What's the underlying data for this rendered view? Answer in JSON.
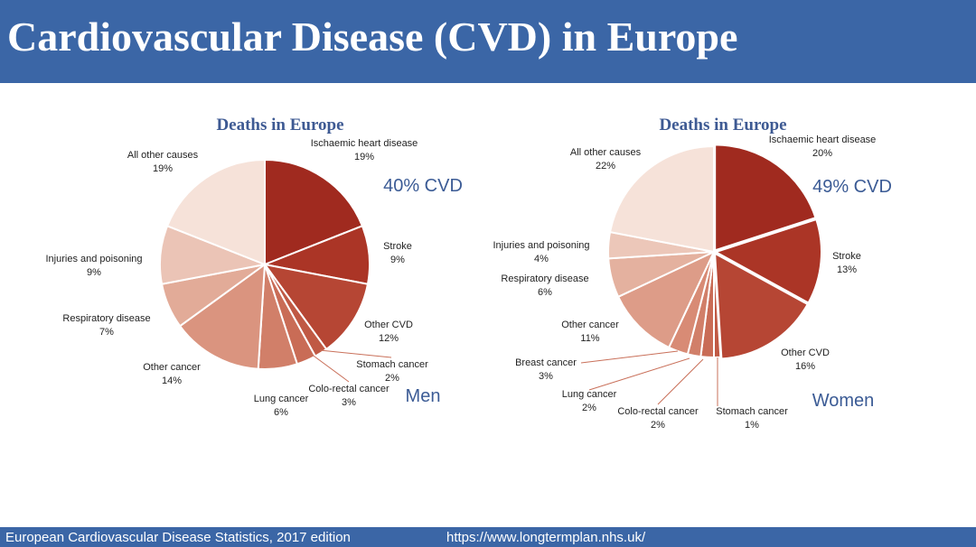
{
  "header": {
    "title": "Cardiovascular Disease (CVD) in Europe"
  },
  "footer": {
    "source": "European Cardiovascular Disease Statistics, 2017 edition",
    "url": "https://www.longtermplan.nhs.uk/"
  },
  "chart_data": [
    {
      "type": "pie",
      "title": "Deaths in Europe",
      "group_label": "Men",
      "cvd_callout": "40% CVD",
      "slices": [
        {
          "name": "Ischaemic heart disease",
          "value": 19,
          "label": "19%",
          "color": "#a02a1f"
        },
        {
          "name": "Stroke",
          "value": 9,
          "label": "9%",
          "color": "#ab3526"
        },
        {
          "name": "Other CVD",
          "value": 12,
          "label": "12%",
          "color": "#b64634"
        },
        {
          "name": "Stomach cancer",
          "value": 2,
          "label": "2%",
          "color": "#c05944"
        },
        {
          "name": "Colo-rectal cancer",
          "value": 3,
          "label": "3%",
          "color": "#c96c56"
        },
        {
          "name": "Lung cancer",
          "value": 6,
          "label": "6%",
          "color": "#d17f69"
        },
        {
          "name": "Other cancer",
          "value": 14,
          "label": "14%",
          "color": "#da947f"
        },
        {
          "name": "Respiratory disease",
          "value": 7,
          "label": "7%",
          "color": "#e2ab98"
        },
        {
          "name": "Injuries and poisoning",
          "value": 9,
          "label": "9%",
          "color": "#ebc4b6"
        },
        {
          "name": "All other causes",
          "value": 19,
          "label": "19%",
          "color": "#f6e2d9"
        }
      ]
    },
    {
      "type": "pie",
      "title": "Deaths in Europe",
      "group_label": "Women",
      "cvd_callout": "49% CVD",
      "slices": [
        {
          "name": "Ischaemic heart disease",
          "value": 20,
          "label": "20%",
          "color": "#a02a1f"
        },
        {
          "name": "Stroke",
          "value": 13,
          "label": "13%",
          "color": "#ab3526"
        },
        {
          "name": "Other CVD",
          "value": 16,
          "label": "16%",
          "color": "#b64634"
        },
        {
          "name": "Stomach cancer",
          "value": 1,
          "label": "1%",
          "color": "#c05944"
        },
        {
          "name": "Colo-rectal cancer",
          "value": 2,
          "label": "2%",
          "color": "#c96c56"
        },
        {
          "name": "Lung cancer",
          "value": 2,
          "label": "2%",
          "color": "#d17f69"
        },
        {
          "name": "Breast cancer",
          "value": 3,
          "label": "3%",
          "color": "#d88b75"
        },
        {
          "name": "Other cancer",
          "value": 11,
          "label": "11%",
          "color": "#dd9c88"
        },
        {
          "name": "Respiratory disease",
          "value": 6,
          "label": "6%",
          "color": "#e4b19f"
        },
        {
          "name": "Injuries and poisoning",
          "value": 4,
          "label": "4%",
          "color": "#ecc7b9"
        },
        {
          "name": "All other causes",
          "value": 22,
          "label": "22%",
          "color": "#f6e2d9"
        }
      ]
    }
  ]
}
